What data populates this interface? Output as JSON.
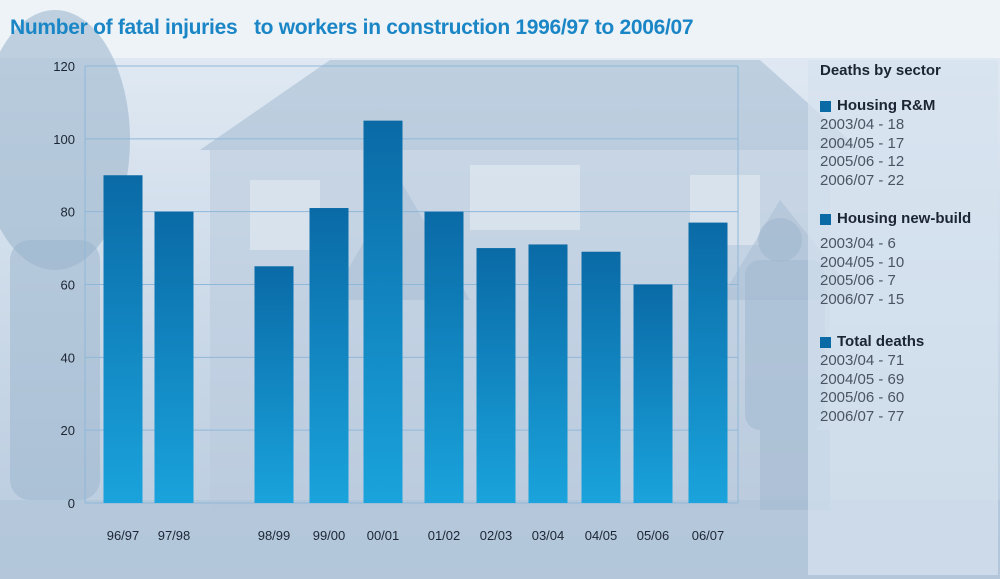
{
  "title": "Number of fatal injuries   to workers in construction 1996/97 to 2006/07",
  "colors": {
    "bar_top": "#0a6aa6",
    "bar_bottom": "#1aa3dc",
    "title": "#1a86c6",
    "gridline": "#8fb7d8",
    "axis_text": "#1c2533"
  },
  "chart_data": {
    "type": "bar",
    "categories": [
      "96/97",
      "97/98",
      "98/99",
      "99/00",
      "00/01",
      "01/02",
      "02/03",
      "03/04",
      "04/05",
      "05/06",
      "06/07"
    ],
    "values": [
      90,
      80,
      65,
      81,
      105,
      80,
      70,
      71,
      69,
      60,
      77
    ],
    "ylim": [
      0,
      120
    ],
    "yticks": [
      0,
      20,
      40,
      60,
      80,
      100,
      120
    ],
    "grid": true,
    "legend_position": "right"
  },
  "legend": {
    "heading": "Deaths by sector",
    "sectors": [
      {
        "name": "Housing R&M",
        "entries": [
          "2003/04 - 18",
          "2004/05 - 17",
          "2005/06 - 12",
          "2006/07 - 22"
        ]
      },
      {
        "name": "Housing new-build",
        "entries": [
          "2003/04 - 6",
          "2004/05 - 10",
          "2005/06 - 7",
          "2006/07 - 15"
        ]
      },
      {
        "name": "Total deaths",
        "entries": [
          "2003/04 - 71",
          "2004/05 - 69",
          "2005/06 - 60",
          "2006/07 - 77"
        ]
      }
    ]
  }
}
